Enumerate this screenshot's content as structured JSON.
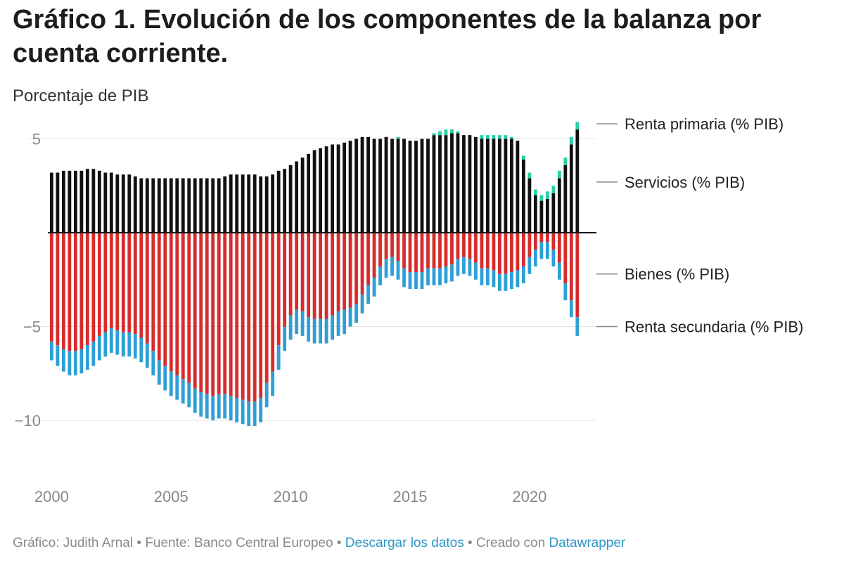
{
  "title": "Gráfico 1. Evolución de los componentes de la balanza por cuenta corriente.",
  "subtitle": "Porcentaje de PIB",
  "footer": {
    "author": "Gráfico: Judith Arnal",
    "source": "Fuente: Banco Central Europeo",
    "separator": " • ",
    "download_link": "Descargar los datos",
    "created_with": "Creado con",
    "tool_link": "Datawrapper"
  },
  "chart_data": {
    "type": "bar",
    "stacked": true,
    "x_ticks": [
      "2000",
      "2005",
      "2010",
      "2015",
      "2020"
    ],
    "y_ticks": [
      5,
      -5,
      -10
    ],
    "y_tick_labels": [
      "5",
      "−5",
      "−10"
    ],
    "ylim": [
      -13,
      6.2
    ],
    "xlim": [
      1999.9,
      2022.8
    ],
    "x_start": 2000.0,
    "x_step": 0.25,
    "colors": {
      "Renta primaria (% PIB)": "#26d0a5",
      "Servicios (% PIB)": "#111111",
      "Bienes (% PIB)": "#d92b2b",
      "Renta secundaria (% PIB)": "#2e9fd6"
    },
    "legend_labels": [
      {
        "name": "Renta primaria (% PIB)",
        "value": 5.8
      },
      {
        "name": "Servicios (% PIB)",
        "value": 2.7
      },
      {
        "name": "Bienes (% PIB)",
        "value": -2.2
      },
      {
        "name": "Renta secundaria (% PIB)",
        "value": -5.0
      }
    ],
    "series": [
      {
        "name": "Servicios (% PIB)",
        "values": [
          3.2,
          3.2,
          3.3,
          3.3,
          3.3,
          3.3,
          3.4,
          3.4,
          3.3,
          3.2,
          3.2,
          3.1,
          3.1,
          3.1,
          3.0,
          2.9,
          2.9,
          2.9,
          2.9,
          2.9,
          2.9,
          2.9,
          2.9,
          2.9,
          2.9,
          2.9,
          2.9,
          2.9,
          2.9,
          3.0,
          3.1,
          3.1,
          3.1,
          3.1,
          3.1,
          3.0,
          3.0,
          3.1,
          3.3,
          3.4,
          3.6,
          3.8,
          4.0,
          4.2,
          4.4,
          4.5,
          4.6,
          4.7,
          4.7,
          4.8,
          4.9,
          5.0,
          5.1,
          5.1,
          5.0,
          5.0,
          5.1,
          5.0,
          5.0,
          5.0,
          4.9,
          4.9,
          5.0,
          5.0,
          5.2,
          5.2,
          5.2,
          5.3,
          5.3,
          5.2,
          5.2,
          5.1,
          5.0,
          5.0,
          5.0,
          5.0,
          5.0,
          5.0,
          4.9,
          3.9,
          2.9,
          2.0,
          1.7,
          1.8,
          2.1,
          2.9,
          3.6,
          4.7,
          5.5
        ]
      },
      {
        "name": "Renta primaria (% PIB)",
        "values": [
          0,
          0,
          0,
          0,
          0,
          0,
          0,
          0,
          0,
          0,
          0,
          0,
          0,
          0,
          0,
          0,
          0,
          0,
          0,
          0,
          0,
          0,
          0,
          0,
          0,
          0,
          0,
          0,
          0,
          0,
          0,
          0,
          0,
          0,
          0,
          0,
          0,
          0,
          0,
          0,
          0,
          0,
          0,
          0,
          0,
          0,
          0,
          0,
          0,
          0,
          0,
          0,
          0,
          0,
          0,
          0,
          0,
          0,
          0.1,
          0,
          0,
          0,
          0,
          0,
          0.1,
          0.2,
          0.3,
          0.2,
          0.1,
          0,
          0,
          0,
          0.2,
          0.2,
          0.2,
          0.2,
          0.2,
          0.1,
          0,
          0.2,
          0.3,
          0.3,
          0.3,
          0.4,
          0.4,
          0.4,
          0.4,
          0.4,
          0.4
        ]
      },
      {
        "name": "Bienes (% PIB)",
        "values": [
          -5.8,
          -6.0,
          -6.2,
          -6.3,
          -6.3,
          -6.2,
          -6.0,
          -5.8,
          -5.5,
          -5.3,
          -5.1,
          -5.2,
          -5.3,
          -5.3,
          -5.4,
          -5.6,
          -5.9,
          -6.3,
          -6.8,
          -7.1,
          -7.4,
          -7.6,
          -7.8,
          -8.0,
          -8.3,
          -8.5,
          -8.6,
          -8.7,
          -8.6,
          -8.6,
          -8.7,
          -8.8,
          -8.9,
          -9.0,
          -9.0,
          -8.8,
          -8.0,
          -7.4,
          -6.0,
          -5.0,
          -4.4,
          -4.1,
          -4.2,
          -4.5,
          -4.6,
          -4.6,
          -4.6,
          -4.4,
          -4.2,
          -4.1,
          -4.0,
          -3.8,
          -3.3,
          -2.8,
          -2.4,
          -1.8,
          -1.4,
          -1.3,
          -1.5,
          -1.9,
          -2.1,
          -2.1,
          -2.1,
          -1.9,
          -1.9,
          -1.9,
          -1.8,
          -1.7,
          -1.4,
          -1.3,
          -1.4,
          -1.6,
          -1.9,
          -1.9,
          -2.0,
          -2.2,
          -2.2,
          -2.1,
          -2.0,
          -1.8,
          -1.3,
          -0.9,
          -0.5,
          -0.5,
          -0.9,
          -1.6,
          -2.7,
          -3.6,
          -4.5
        ]
      },
      {
        "name": "Renta secundaria (% PIB)",
        "values": [
          -1.0,
          -1.1,
          -1.2,
          -1.3,
          -1.3,
          -1.3,
          -1.3,
          -1.3,
          -1.3,
          -1.3,
          -1.3,
          -1.3,
          -1.3,
          -1.3,
          -1.3,
          -1.3,
          -1.3,
          -1.3,
          -1.3,
          -1.3,
          -1.3,
          -1.3,
          -1.3,
          -1.3,
          -1.3,
          -1.3,
          -1.3,
          -1.3,
          -1.3,
          -1.3,
          -1.3,
          -1.3,
          -1.3,
          -1.3,
          -1.3,
          -1.3,
          -1.3,
          -1.3,
          -1.3,
          -1.3,
          -1.3,
          -1.3,
          -1.3,
          -1.3,
          -1.3,
          -1.3,
          -1.3,
          -1.3,
          -1.3,
          -1.3,
          -1.0,
          -1.0,
          -1.0,
          -1.0,
          -1.0,
          -1.0,
          -1.0,
          -1.0,
          -1.0,
          -1.0,
          -0.9,
          -0.9,
          -0.9,
          -0.9,
          -0.9,
          -0.9,
          -0.9,
          -0.9,
          -0.9,
          -0.9,
          -0.9,
          -0.9,
          -0.9,
          -0.9,
          -0.9,
          -0.9,
          -0.9,
          -0.9,
          -0.9,
          -0.9,
          -0.9,
          -0.9,
          -0.9,
          -0.9,
          -0.9,
          -0.9,
          -0.9,
          -0.9,
          -1.0
        ]
      }
    ],
    "grid": true,
    "legend_position": "right, inline labels"
  }
}
